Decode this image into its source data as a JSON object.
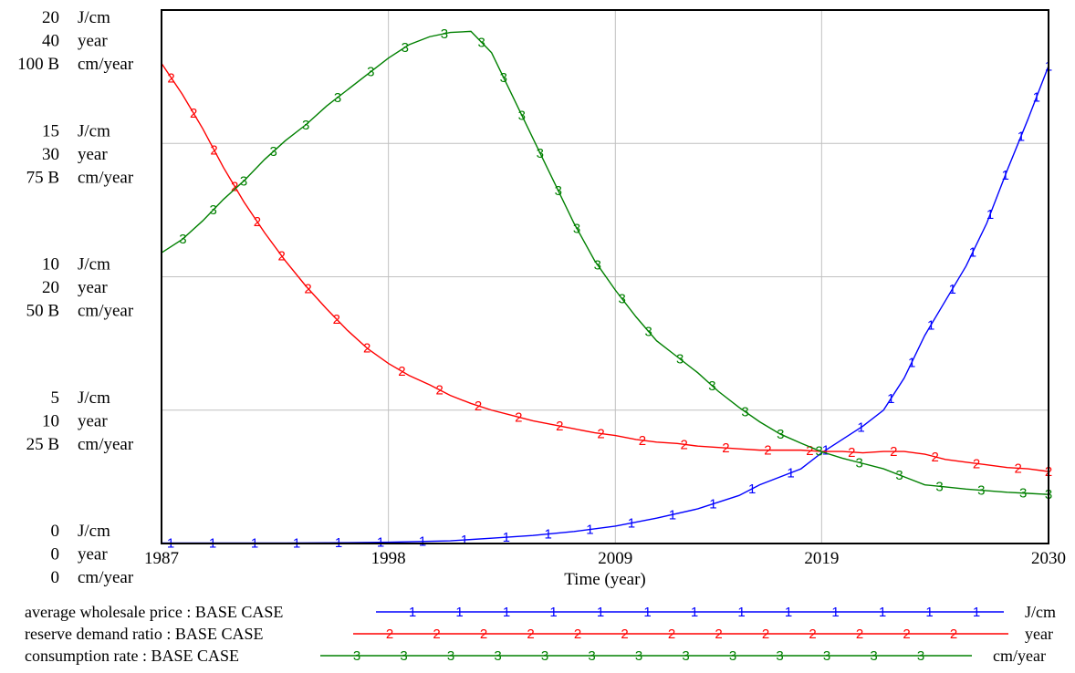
{
  "chart_data": {
    "type": "line",
    "title": "",
    "xlabel": "Time (year)",
    "x_ticks": [
      "1987",
      "1998",
      "2009",
      "2019",
      "2030"
    ],
    "xlim": [
      1987,
      2030
    ],
    "grid": true,
    "y_axis_groups": [
      {
        "labels": [
          {
            "value": "20",
            "unit": "J/cm"
          },
          {
            "value": "40",
            "unit": "year"
          },
          {
            "value": "100 B",
            "unit": "cm/year"
          }
        ]
      },
      {
        "labels": [
          {
            "value": "15",
            "unit": "J/cm"
          },
          {
            "value": "30",
            "unit": "year"
          },
          {
            "value": "75 B",
            "unit": "cm/year"
          }
        ]
      },
      {
        "labels": [
          {
            "value": "10",
            "unit": "J/cm"
          },
          {
            "value": "20",
            "unit": "year"
          },
          {
            "value": "50 B",
            "unit": "cm/year"
          }
        ]
      },
      {
        "labels": [
          {
            "value": "5",
            "unit": "J/cm"
          },
          {
            "value": "10",
            "unit": "year"
          },
          {
            "value": "25 B",
            "unit": "cm/year"
          }
        ]
      },
      {
        "labels": [
          {
            "value": "0",
            "unit": "J/cm"
          },
          {
            "value": "0",
            "unit": "year"
          },
          {
            "value": "0",
            "unit": "cm/year"
          }
        ]
      }
    ],
    "series": [
      {
        "name": "average wholesale price : BASE CASE",
        "marker": "1",
        "unit": "J/cm",
        "color": "#0000ff",
        "ylim": [
          0,
          20
        ],
        "points": [
          [
            1987,
            0.02
          ],
          [
            1990,
            0.02
          ],
          [
            1993,
            0.02
          ],
          [
            1996,
            0.03
          ],
          [
            1998,
            0.05
          ],
          [
            2001,
            0.1
          ],
          [
            2003,
            0.2
          ],
          [
            2005,
            0.3
          ],
          [
            2007,
            0.45
          ],
          [
            2009,
            0.65
          ],
          [
            2011,
            0.95
          ],
          [
            2013,
            1.3
          ],
          [
            2015,
            1.8
          ],
          [
            2016,
            2.2
          ],
          [
            2018,
            2.8
          ],
          [
            2019,
            3.4
          ],
          [
            2020,
            3.9
          ],
          [
            2021,
            4.4
          ],
          [
            2022,
            5.0
          ],
          [
            2023,
            6.2
          ],
          [
            2024,
            7.8
          ],
          [
            2025,
            9.1
          ],
          [
            2026,
            10.4
          ],
          [
            2027,
            12.0
          ],
          [
            2028,
            14.0
          ],
          [
            2029,
            15.9
          ],
          [
            2030,
            17.9
          ]
        ]
      },
      {
        "name": "reserve demand ratio : BASE CASE",
        "marker": "2",
        "unit": "year",
        "color": "#ff0000",
        "ylim": [
          0,
          40
        ],
        "points": [
          [
            1987,
            36.0
          ],
          [
            1988,
            33.7
          ],
          [
            1989,
            31.1
          ],
          [
            1990,
            28.2
          ],
          [
            1991,
            25.6
          ],
          [
            1992,
            23.3
          ],
          [
            1993,
            21.2
          ],
          [
            1994,
            19.3
          ],
          [
            1995,
            17.6
          ],
          [
            1996,
            16.0
          ],
          [
            1997,
            14.6
          ],
          [
            1998,
            13.5
          ],
          [
            1999,
            12.6
          ],
          [
            2000,
            11.9
          ],
          [
            2001,
            11.1
          ],
          [
            2002,
            10.5
          ],
          [
            2003,
            10.0
          ],
          [
            2004,
            9.6
          ],
          [
            2005,
            9.2
          ],
          [
            2006,
            8.9
          ],
          [
            2007,
            8.6
          ],
          [
            2008,
            8.3
          ],
          [
            2009,
            8.1
          ],
          [
            2010,
            7.8
          ],
          [
            2011,
            7.6
          ],
          [
            2012,
            7.5
          ],
          [
            2013,
            7.3
          ],
          [
            2014,
            7.2
          ],
          [
            2015,
            7.1
          ],
          [
            2016,
            7.0
          ],
          [
            2017,
            7.0
          ],
          [
            2018,
            7.0
          ],
          [
            2019,
            6.9
          ],
          [
            2020,
            6.9
          ],
          [
            2021,
            6.8
          ],
          [
            2022,
            6.9
          ],
          [
            2023,
            6.9
          ],
          [
            2024,
            6.7
          ],
          [
            2025,
            6.3
          ],
          [
            2026,
            6.1
          ],
          [
            2027,
            5.9
          ],
          [
            2028,
            5.7
          ],
          [
            2029,
            5.6
          ],
          [
            2030,
            5.4
          ]
        ]
      },
      {
        "name": "consumption rate : BASE CASE",
        "marker": "3",
        "unit": "cm/year",
        "color": "#008000",
        "ylim": [
          0,
          100000000000
        ],
        "points": [
          [
            1987,
            54500000000.0
          ],
          [
            1988,
            57000000000.0
          ],
          [
            1989,
            60500000000.0
          ],
          [
            1990,
            64500000000.0
          ],
          [
            1991,
            68000000000.0
          ],
          [
            1992,
            72000000000.0
          ],
          [
            1993,
            75500000000.0
          ],
          [
            1994,
            78500000000.0
          ],
          [
            1995,
            82000000000.0
          ],
          [
            1996,
            85000000000.0
          ],
          [
            1997,
            88000000000.0
          ],
          [
            1998,
            91000000000.0
          ],
          [
            1999,
            93500000000.0
          ],
          [
            2000,
            95000000000.0
          ],
          [
            2001,
            95800000000.0
          ],
          [
            2002,
            96000000000.0
          ],
          [
            2003,
            92000000000.0
          ],
          [
            2004,
            84000000000.0
          ],
          [
            2005,
            76000000000.0
          ],
          [
            2006,
            68000000000.0
          ],
          [
            2007,
            60000000000.0
          ],
          [
            2008,
            53000000000.0
          ],
          [
            2009,
            47500000000.0
          ],
          [
            2010,
            42500000000.0
          ],
          [
            2011,
            38000000000.0
          ],
          [
            2012,
            35000000000.0
          ],
          [
            2013,
            32000000000.0
          ],
          [
            2014,
            28500000000.0
          ],
          [
            2015,
            25500000000.0
          ],
          [
            2016,
            22800000000.0
          ],
          [
            2017,
            20500000000.0
          ],
          [
            2018,
            18800000000.0
          ],
          [
            2019,
            17200000000.0
          ],
          [
            2020,
            16000000000.0
          ],
          [
            2021,
            15000000000.0
          ],
          [
            2022,
            14000000000.0
          ],
          [
            2023,
            12500000000.0
          ],
          [
            2024,
            11000000000.0
          ],
          [
            2025,
            10600000000.0
          ],
          [
            2026,
            10200000000.0
          ],
          [
            2027,
            9900000000.0
          ],
          [
            2028,
            9600000000.0
          ],
          [
            2029,
            9400000000.0
          ],
          [
            2030,
            9200000000.0
          ]
        ]
      }
    ]
  }
}
